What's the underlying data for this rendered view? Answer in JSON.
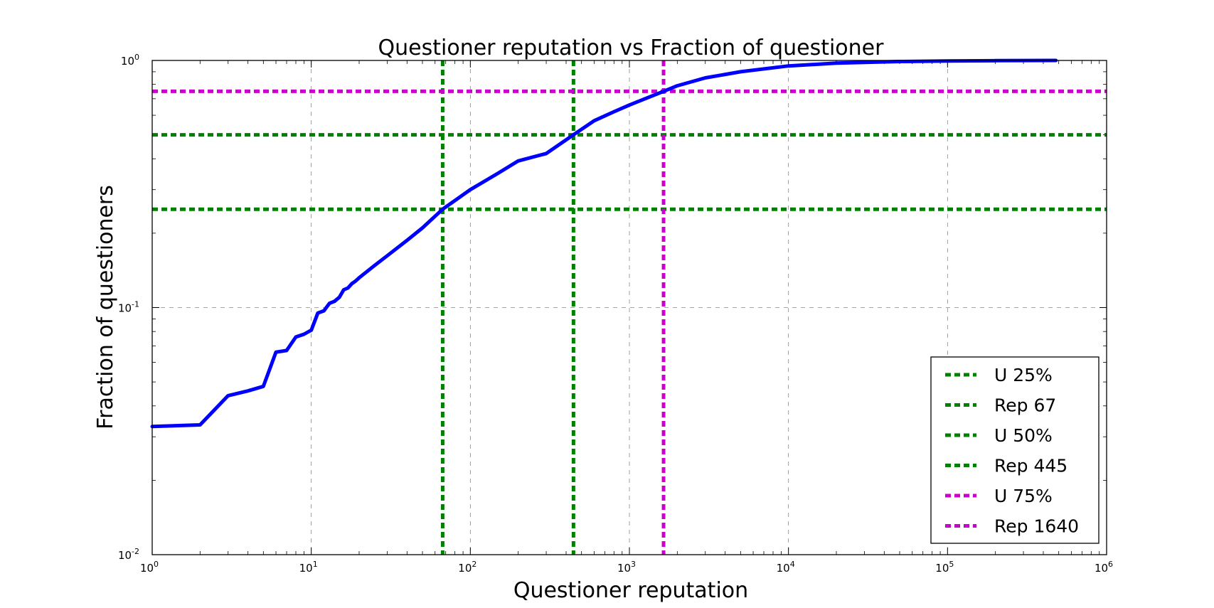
{
  "chart_data": {
    "type": "line",
    "title": "Questioner reputation vs Fraction of questioner",
    "xlabel": "Questioner reputation",
    "ylabel": "Fraction of questioners",
    "x_scale": "log",
    "y_scale": "log",
    "xlim": [
      1,
      1000000
    ],
    "ylim": [
      0.01,
      1
    ],
    "grid": true,
    "x_ticks": [
      {
        "base": "10",
        "exp": "0",
        "value": 1
      },
      {
        "base": "10",
        "exp": "1",
        "value": 10
      },
      {
        "base": "10",
        "exp": "2",
        "value": 100
      },
      {
        "base": "10",
        "exp": "3",
        "value": 1000
      },
      {
        "base": "10",
        "exp": "4",
        "value": 10000
      },
      {
        "base": "10",
        "exp": "5",
        "value": 100000
      },
      {
        "base": "10",
        "exp": "6",
        "value": 1000000
      }
    ],
    "y_ticks": [
      {
        "base": "10",
        "exp": "-2",
        "value": 0.01
      },
      {
        "base": "10",
        "exp": "-1",
        "value": 0.1
      },
      {
        "base": "10",
        "exp": "0",
        "value": 1
      }
    ],
    "series": [
      {
        "color": "#0000ff",
        "x": [
          1,
          2,
          3,
          4,
          5,
          6,
          7,
          8,
          9,
          10,
          11,
          12,
          13,
          14,
          15,
          16,
          17,
          18,
          19,
          20,
          25,
          30,
          40,
          50,
          67,
          100,
          150,
          200,
          300,
          445,
          600,
          800,
          1000,
          1640,
          2000,
          3000,
          5000,
          10000,
          20000,
          50000,
          100000,
          200000,
          480000
        ],
        "y": [
          0.033,
          0.0335,
          0.044,
          0.046,
          0.048,
          0.066,
          0.067,
          0.076,
          0.078,
          0.081,
          0.095,
          0.097,
          0.104,
          0.106,
          0.11,
          0.118,
          0.12,
          0.125,
          0.128,
          0.132,
          0.148,
          0.162,
          0.187,
          0.21,
          0.25,
          0.3,
          0.35,
          0.392,
          0.42,
          0.5,
          0.57,
          0.62,
          0.66,
          0.75,
          0.79,
          0.85,
          0.9,
          0.95,
          0.975,
          0.99,
          0.995,
          0.998,
          1.0
        ]
      }
    ],
    "reference_lines": [
      {
        "orientation": "horizontal",
        "value": 0.25,
        "label": "U 25%",
        "color": "#008000"
      },
      {
        "orientation": "vertical",
        "value": 67,
        "label": "Rep 67",
        "color": "#008000"
      },
      {
        "orientation": "horizontal",
        "value": 0.5,
        "label": "U 50%",
        "color": "#008000"
      },
      {
        "orientation": "vertical",
        "value": 445,
        "label": "Rep 445",
        "color": "#008000"
      },
      {
        "orientation": "horizontal",
        "value": 0.75,
        "label": "U 75%",
        "color": "#cc00cc"
      },
      {
        "orientation": "vertical",
        "value": 1640,
        "label": "Rep 1640",
        "color": "#cc00cc"
      }
    ],
    "legend_position": "lower-right"
  }
}
